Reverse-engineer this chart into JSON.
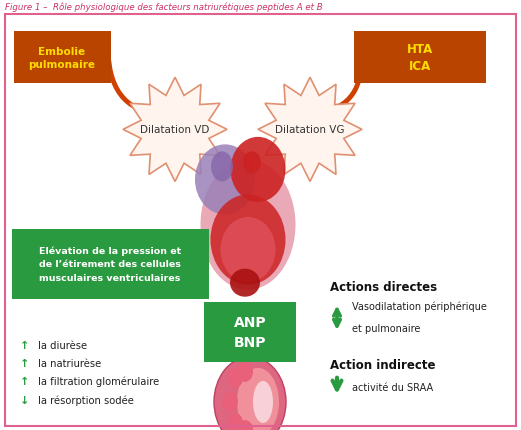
{
  "title": "Figure 1 –  Rôle physiologique des facteurs natriurétiques peptides A et B",
  "bg_color": "#ffffff",
  "border_color": "#e06090",
  "orange_box_color": "#b84400",
  "orange_box_text_color": "#ffdd00",
  "green_box_color": "#2a9a40",
  "green_box_text_color": "#ffffff",
  "arrow_orange_color": "#d04000",
  "arrow_green_color": "#2a9a40",
  "burst_fill": "#fff4ee",
  "burst_stroke": "#e09070",
  "burst_text_color": "#333333",
  "left_box_label": "Embolie\npulmonaire",
  "right_box_label": "HTA\nICA",
  "left_burst_label": "Dilatation VD",
  "right_burst_label": "Dilatation VG",
  "green_box_label": "ANP\nBNP",
  "pressure_box_label": "Elévation de la pression et\nde l’étirement des cellules\nmusculaires ventriculaires",
  "actions_directes_title": "Actions directes",
  "vasodilatation_up": "↑",
  "vasodilatation_line1": "Vasodilatation périphérique",
  "vasodilatation_down": "↓",
  "vasodilatation_line2": "et pulmonaire",
  "action_indirecte_title": "Action indirecte",
  "sraa_down": "↓",
  "sraa_line": "activité du SRAA",
  "list_items_arrows": [
    "↑",
    "↑",
    "↑",
    "↓"
  ],
  "list_items_text": [
    "la diurèse",
    "la natriurèse",
    "la filtration glomérulaire",
    "la résorption sodée"
  ]
}
